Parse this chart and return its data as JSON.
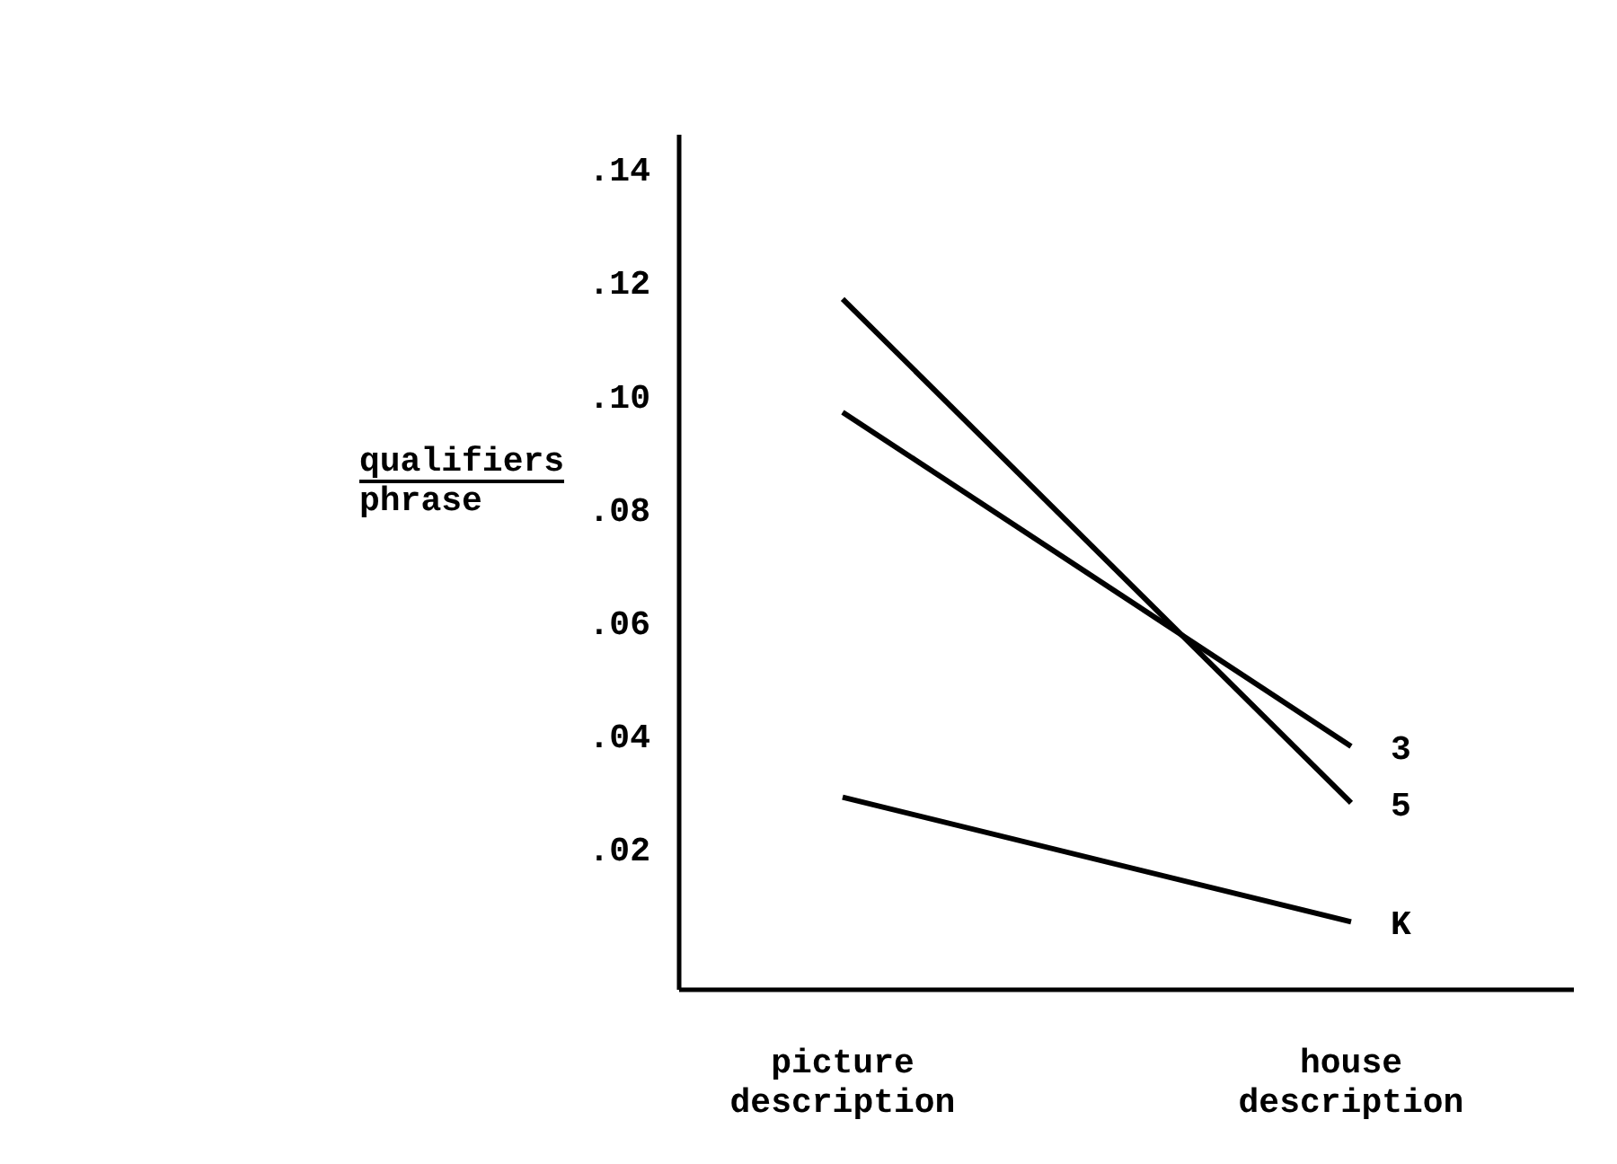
{
  "chart_data": {
    "type": "line",
    "ylabel": "qualifiers phrase",
    "categories": [
      "picture description",
      "house description"
    ],
    "series": [
      {
        "name": "3",
        "color": "#000000",
        "values": [
          0.097,
          0.038
        ]
      },
      {
        "name": "5",
        "color": "#000000",
        "values": [
          0.117,
          0.028
        ]
      },
      {
        "name": "K",
        "color": "#000000",
        "values": [
          0.029,
          0.007
        ]
      }
    ],
    "ylim": [
      -0.005,
      0.146
    ],
    "yticks": [
      {
        "value": 0.02,
        "label": ".02"
      },
      {
        "value": 0.04,
        "label": ".04"
      },
      {
        "value": 0.06,
        "label": ".06"
      },
      {
        "value": 0.08,
        "label": ".08"
      },
      {
        "value": 0.1,
        "label": ".10"
      },
      {
        "value": 0.12,
        "label": ".12"
      },
      {
        "value": 0.14,
        "label": ".14"
      }
    ],
    "grid": false,
    "legend": false,
    "marker": "none",
    "line_style": "solid"
  }
}
